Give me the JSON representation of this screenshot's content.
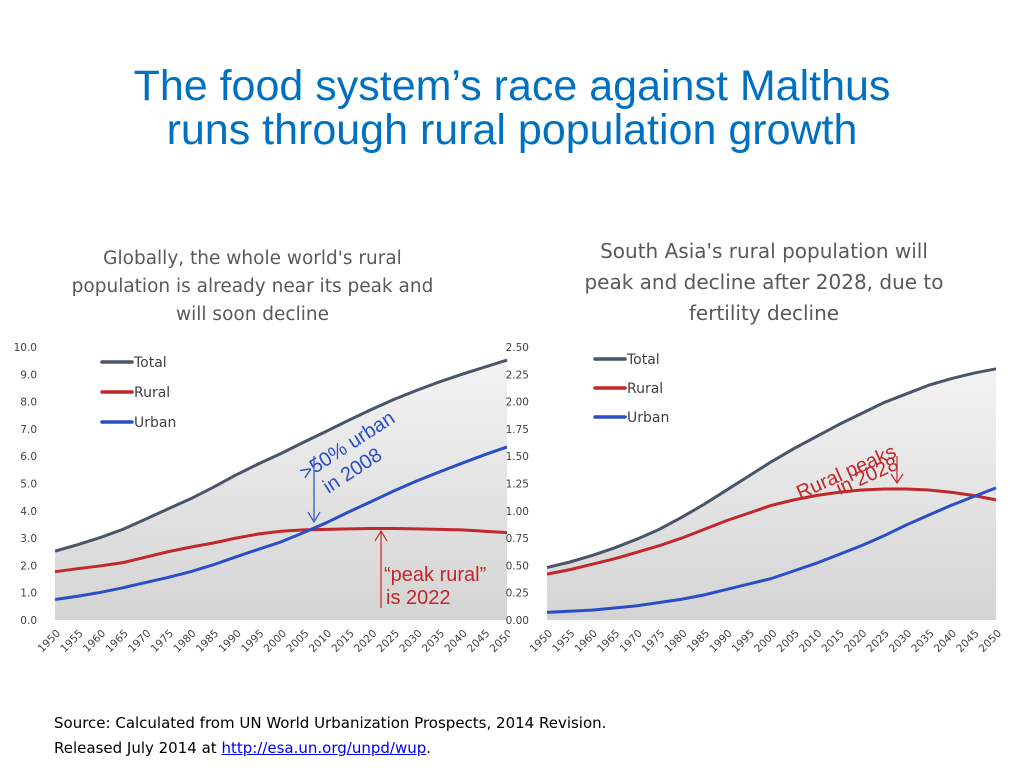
{
  "title": {
    "line1": "The food system’s race against Malthus",
    "line2": "runs through rural population growth"
  },
  "source": {
    "line1": "Source: Calculated  from UN World Urbanization Prospects, 2014 Revision.",
    "line2_prefix": "Released July 2014 at ",
    "link": "http://esa.un.org/unpd/wup",
    "line2_suffix": "."
  },
  "chart_data": [
    {
      "type": "line",
      "title": "Globally, the whole world's rural population is already near its peak and will soon decline",
      "xlabel": "",
      "ylabel": "",
      "x": [
        1950,
        1955,
        1960,
        1965,
        1970,
        1975,
        1980,
        1985,
        1990,
        1995,
        2000,
        2005,
        2010,
        2015,
        2020,
        2025,
        2030,
        2035,
        2040,
        2045,
        2050
      ],
      "ylim": [
        0,
        10
      ],
      "yticks": [
        "0.0",
        "1.0",
        "2.0",
        "3.0",
        "4.0",
        "5.0",
        "6.0",
        "7.0",
        "8.0",
        "9.0",
        "10.0"
      ],
      "legend": "top-left",
      "series": [
        {
          "name": "Total",
          "color": "#4a5568",
          "values": [
            2.52,
            2.76,
            3.02,
            3.32,
            3.69,
            4.07,
            4.44,
            4.86,
            5.31,
            5.72,
            6.1,
            6.51,
            6.91,
            7.32,
            7.71,
            8.08,
            8.41,
            8.72,
            9.0,
            9.26,
            9.52
          ],
          "fill": true
        },
        {
          "name": "Rural",
          "color": "#c0282b",
          "values": [
            1.77,
            1.88,
            1.98,
            2.1,
            2.3,
            2.5,
            2.67,
            2.82,
            3.0,
            3.15,
            3.25,
            3.3,
            3.32,
            3.34,
            3.35,
            3.35,
            3.34,
            3.32,
            3.3,
            3.25,
            3.2
          ]
        },
        {
          "name": "Urban",
          "color": "#2a4fc4",
          "values": [
            0.75,
            0.87,
            1.01,
            1.18,
            1.37,
            1.56,
            1.77,
            2.02,
            2.31,
            2.59,
            2.86,
            3.2,
            3.56,
            3.96,
            4.34,
            4.73,
            5.09,
            5.42,
            5.74,
            6.05,
            6.34
          ]
        }
      ],
      "annotations": [
        {
          "text_lines": [
            ">50% urban",
            "in 2008"
          ],
          "color": "#2a4fc4",
          "x": 2008,
          "y": 3.3
        },
        {
          "text_lines": [
            "“peak rural”",
            "is 2022"
          ],
          "color": "#c0282b",
          "x": 2022,
          "y": 3.35
        }
      ]
    },
    {
      "type": "line",
      "title": "South Asia's rural population will peak and decline after 2028, due to fertility decline",
      "xlabel": "",
      "ylabel": "",
      "x": [
        1950,
        1955,
        1960,
        1965,
        1970,
        1975,
        1980,
        1985,
        1990,
        1995,
        2000,
        2005,
        2010,
        2015,
        2020,
        2025,
        2030,
        2035,
        2040,
        2045,
        2050
      ],
      "ylim": [
        0,
        2.5
      ],
      "yticks": [
        "0.00",
        "0.25",
        "0.50",
        "0.75",
        "1.00",
        "1.25",
        "1.50",
        "1.75",
        "2.00",
        "2.25",
        "2.50"
      ],
      "legend": "top-center",
      "series": [
        {
          "name": "Total",
          "color": "#4a5568",
          "values": [
            0.48,
            0.53,
            0.59,
            0.66,
            0.74,
            0.83,
            0.94,
            1.06,
            1.19,
            1.32,
            1.45,
            1.57,
            1.68,
            1.79,
            1.89,
            1.99,
            2.07,
            2.15,
            2.21,
            2.26,
            2.3
          ],
          "fill": true
        },
        {
          "name": "Rural",
          "color": "#c0282b",
          "values": [
            0.42,
            0.46,
            0.51,
            0.56,
            0.62,
            0.68,
            0.75,
            0.83,
            0.91,
            0.98,
            1.05,
            1.1,
            1.14,
            1.17,
            1.19,
            1.2,
            1.2,
            1.19,
            1.17,
            1.14,
            1.1
          ]
        },
        {
          "name": "Urban",
          "color": "#2a4fc4",
          "values": [
            0.07,
            0.08,
            0.09,
            0.11,
            0.13,
            0.16,
            0.19,
            0.23,
            0.28,
            0.33,
            0.38,
            0.45,
            0.52,
            0.6,
            0.68,
            0.77,
            0.87,
            0.96,
            1.05,
            1.13,
            1.21
          ]
        }
      ],
      "annotations": [
        {
          "text_lines": [
            "Rural peaks",
            "in 2028"
          ],
          "color": "#c0282b",
          "x": 2028,
          "y": 1.2
        }
      ]
    }
  ]
}
